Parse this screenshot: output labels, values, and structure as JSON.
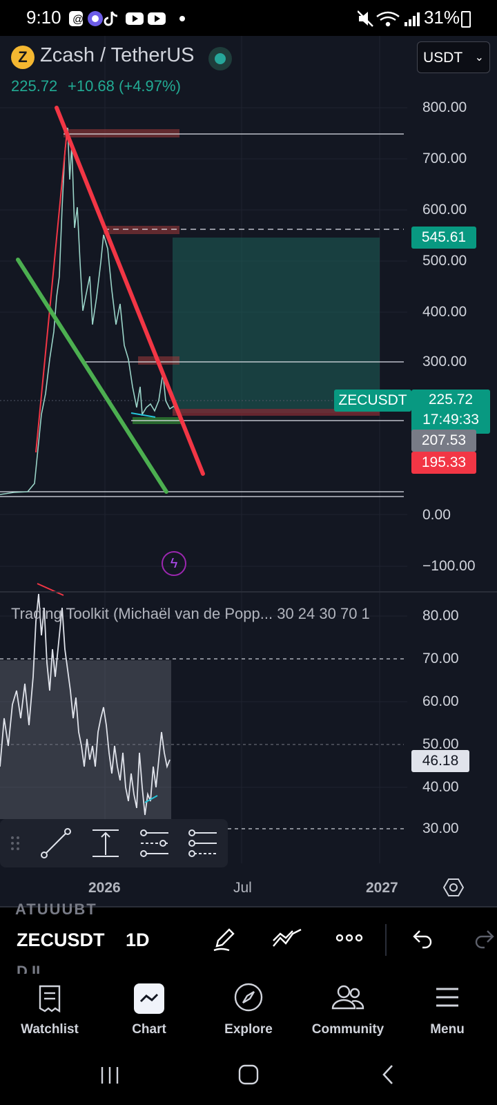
{
  "status_bar": {
    "time": "9:10",
    "battery": "31%",
    "icons": [
      "threads-icon",
      "stable-diffusion-icon",
      "tiktok-icon",
      "youtube-icon",
      "youtube-icon",
      "dot-icon",
      "mute-icon",
      "wifi-icon",
      "signal-icon",
      "battery-icon"
    ]
  },
  "header": {
    "coin_icon_letter": "Z",
    "title": "Zcash / TetherUS",
    "price": "225.72",
    "change": "+10.68 (+4.97%)",
    "currency_select": "USDT",
    "colors": {
      "coin": "#f4b731",
      "live_dot": "#26a69a",
      "up": "#22ab94"
    }
  },
  "price_axis": {
    "labels": [
      "800.00",
      "700.00",
      "600.00",
      "500.00",
      "400.00",
      "300.00",
      "0.00",
      "−100.00"
    ],
    "tags": {
      "target": "545.61",
      "symbol": "ZECUSDT",
      "last_price": "225.72",
      "countdown": "17:49:33",
      "level_grey": "207.53",
      "stop": "195.33"
    },
    "colors": {
      "target": "#089981",
      "symbol": "#089981",
      "grey": "#787b86",
      "stop": "#f23645"
    }
  },
  "indicator": {
    "title": "Trading Toolkit (Michaël van de Popp... 30 24 30 70 1",
    "labels": [
      "80.00",
      "70.00",
      "60.00",
      "50.00",
      "40.00",
      "30.00"
    ],
    "value": "46.18"
  },
  "time_axis": {
    "labels": [
      "2026",
      "Jul",
      "2027"
    ]
  },
  "drawing_toolbar": {
    "tools": [
      "grip-icon",
      "trend-line-icon",
      "vertical-measure-icon",
      "parallel-channel-icon",
      "pitchfork-icon"
    ]
  },
  "bottom_toolbar": {
    "ghost_top": "ATUUUBT",
    "symbol": "ZECUSDT",
    "interval": "1D",
    "ghost_bottom": "D.II",
    "actions": [
      "pencil-icon",
      "indicators-icon",
      "more-icon",
      "undo-icon",
      "redo-icon"
    ]
  },
  "nav": {
    "items": [
      {
        "label": "Watchlist",
        "icon": "watchlist-icon"
      },
      {
        "label": "Chart",
        "icon": "chart-icon"
      },
      {
        "label": "Explore",
        "icon": "compass-icon"
      },
      {
        "label": "Community",
        "icon": "community-icon"
      },
      {
        "label": "Menu",
        "icon": "menu-icon"
      }
    ]
  }
}
